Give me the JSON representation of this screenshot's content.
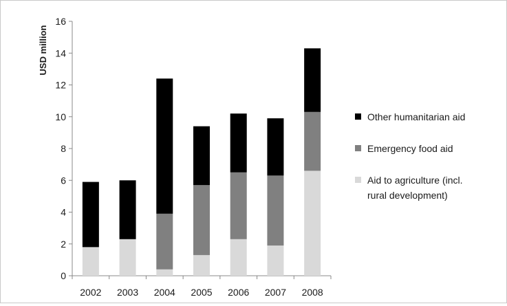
{
  "chart_data": {
    "type": "bar",
    "stacked": true,
    "ylabel": "USD million",
    "ylim": [
      0,
      16
    ],
    "yticks": [
      0,
      2,
      4,
      6,
      8,
      10,
      12,
      14,
      16
    ],
    "grid": false,
    "legend_position": "right",
    "categories": [
      "2002",
      "2003",
      "2004",
      "2005",
      "2006",
      "2007",
      "2008"
    ],
    "series": [
      {
        "name": "Aid to agriculture (incl. rural development)",
        "color": "#d9d9d9",
        "values": [
          1.8,
          2.3,
          0.4,
          1.3,
          2.3,
          1.9,
          6.6
        ]
      },
      {
        "name": "Emergency food aid",
        "color": "#808080",
        "values": [
          0.0,
          0.0,
          3.5,
          4.4,
          4.2,
          4.4,
          3.7
        ]
      },
      {
        "name": "Other humanitarian aid",
        "color": "#000000",
        "values": [
          4.1,
          3.7,
          8.5,
          3.7,
          3.7,
          3.6,
          4.0
        ]
      }
    ],
    "legend": [
      {
        "lines": [
          "Other humanitarian aid"
        ],
        "color": "#000000"
      },
      {
        "lines": [
          "Emergency food aid"
        ],
        "color": "#808080"
      },
      {
        "lines": [
          "Aid to agriculture (incl.",
          "rural development)"
        ],
        "color": "#d9d9d9"
      }
    ]
  }
}
